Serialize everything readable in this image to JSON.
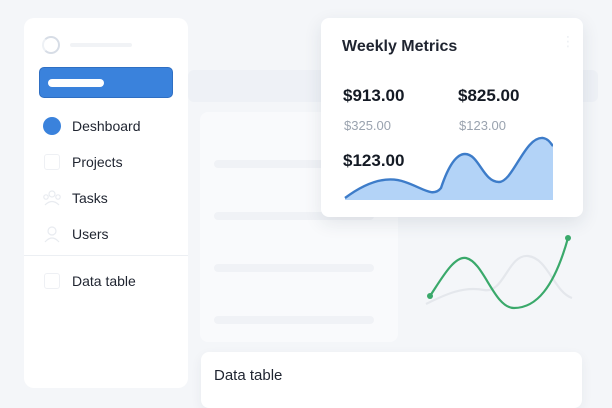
{
  "sidebar": {
    "items": [
      {
        "label": "Deshboard",
        "icon": "dashboard-icon",
        "active": true
      },
      {
        "label": "Projects",
        "icon": "projects-icon",
        "active": false
      },
      {
        "label": "Tasks",
        "icon": "tasks-icon",
        "active": false
      },
      {
        "label": "Users",
        "icon": "users-icon",
        "active": false
      }
    ],
    "secondary": [
      {
        "label": "Data table",
        "icon": "table-icon"
      }
    ]
  },
  "metrics_card": {
    "title": "Weekly Metrics",
    "stats": [
      {
        "value": "$913.00",
        "sub": "$325.00"
      },
      {
        "value": "$825.00",
        "sub": "$123.00"
      },
      {
        "value": "$123.00"
      }
    ]
  },
  "table_card": {
    "title": "Data table"
  },
  "colors": {
    "accent": "#3a82dc",
    "area_fill": "#b3d3f7",
    "area_line": "#3d7cc9",
    "trend_line": "#3aa96b",
    "trend_ghost": "#e4e7ec"
  }
}
